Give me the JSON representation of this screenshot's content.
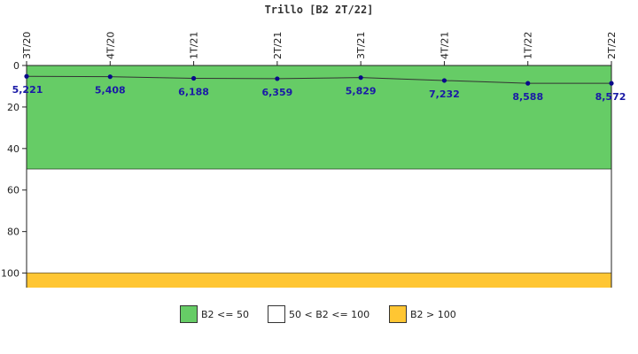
{
  "colors": {
    "green": "#66cc66",
    "white": "#ffffff",
    "yellow": "#ffc633",
    "series": "#0a0a8a",
    "axis": "#222222"
  },
  "legend": [
    {
      "label": "B2 <= 50",
      "color": "#66cc66"
    },
    {
      "label": "50 < B2 <= 100",
      "color": "#ffffff"
    },
    {
      "label": "B2 > 100",
      "color": "#ffc633"
    }
  ],
  "chart_data": {
    "type": "line",
    "title": "Trillo [B2 2T/22]",
    "categories": [
      "3T/20",
      "4T/20",
      "1T/21",
      "2T/21",
      "3T/21",
      "4T/21",
      "1T/22",
      "2T/22"
    ],
    "values": [
      5.221,
      5.408,
      6.188,
      6.359,
      5.829,
      7.232,
      8.588,
      8.572
    ],
    "value_labels": [
      "5,221",
      "5,408",
      "6,188",
      "6,359",
      "5,829",
      "7,232",
      "8,588",
      "8,572"
    ],
    "y_ticks": [
      0,
      20,
      40,
      60,
      80,
      100
    ],
    "ylim": [
      0,
      107
    ],
    "y_inverted": true,
    "x_axis_position": "top",
    "bands": [
      {
        "from": 0,
        "to": 50,
        "color": "#66cc66"
      },
      {
        "from": 50,
        "to": 100,
        "color": "#ffffff"
      },
      {
        "from": 100,
        "to": 107,
        "color": "#ffc633"
      }
    ],
    "grid": false,
    "legend_position": "bottom"
  }
}
